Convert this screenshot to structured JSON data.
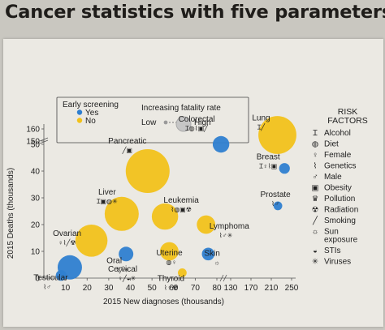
{
  "page_title": "Cancer statistics with five parameters",
  "chart_data": {
    "type": "scatter",
    "title": "Cancer statistics with five parameters",
    "xlabel": "2015 New diagnoses (thousands)",
    "ylabel": "2015 Deaths (thousands)",
    "x_ticks": [
      "10",
      "20",
      "30",
      "40",
      "50",
      "60",
      "70",
      "80",
      "130",
      "170",
      "210",
      "250"
    ],
    "y_ticks": [
      "0",
      "10",
      "20",
      "30",
      "40",
      "50",
      "150",
      "160"
    ],
    "legend": {
      "early_screening": {
        "title": "Early screening",
        "items": [
          {
            "label": "Yes",
            "color": "#2f7fd0"
          },
          {
            "label": "No",
            "color": "#f2c21b"
          }
        ]
      },
      "fatality": {
        "title": "Increasing fatality rate",
        "low": "Low",
        "high": "High"
      },
      "risk_factors": {
        "title": [
          "RISK",
          "FACTORS"
        ],
        "items": [
          {
            "label": "Alcohol",
            "icon": "glass-icon"
          },
          {
            "label": "Diet",
            "icon": "diet-icon"
          },
          {
            "label": "Female",
            "icon": "female-icon"
          },
          {
            "label": "Genetics",
            "icon": "dna-icon"
          },
          {
            "label": "Male",
            "icon": "male-icon"
          },
          {
            "label": "Obesity",
            "icon": "obesity-icon"
          },
          {
            "label": "Pollution",
            "icon": "factory-icon"
          },
          {
            "label": "Radiation",
            "icon": "radiation-icon"
          },
          {
            "label": "Smoking",
            "icon": "cigarette-icon"
          },
          {
            "label": "Sun exposure",
            "icon": "sun-icon"
          },
          {
            "label": "STIs",
            "icon": "sti-icon"
          },
          {
            "label": "Viruses",
            "icon": "virus-icon"
          }
        ]
      }
    },
    "points": [
      {
        "name": "Lung",
        "x": 222,
        "y": 155,
        "fatality": 0.85,
        "screening": "No",
        "factors": [
          "Alcohol",
          "Smoking"
        ]
      },
      {
        "name": "Pancreatic",
        "x": 48,
        "y": 40,
        "fatality": 1.0,
        "screening": "No",
        "factors": [
          "Smoking",
          "Obesity"
        ]
      },
      {
        "name": "Colorectal",
        "x": 95,
        "y": 50,
        "fatality": 0.3,
        "screening": "Yes",
        "factors": [
          "Alcohol",
          "Diet",
          "Genetics",
          "Obesity",
          "Smoking"
        ]
      },
      {
        "name": "Breast",
        "x": 236,
        "y": 41,
        "fatality": 0.15,
        "screening": "Yes",
        "factors": [
          "Alcohol",
          "Female",
          "Genetics",
          "Obesity"
        ]
      },
      {
        "name": "Prostate",
        "x": 223,
        "y": 27,
        "fatality": 0.1,
        "screening": "Yes",
        "factors": [
          "Genetics",
          "Male"
        ]
      },
      {
        "name": "Liver",
        "x": 36,
        "y": 24,
        "fatality": 0.75,
        "screening": "No",
        "factors": [
          "Alcohol",
          "Obesity",
          "Diet",
          "Viruses"
        ]
      },
      {
        "name": "Leukemia",
        "x": 56,
        "y": 23,
        "fatality": 0.55,
        "screening": "No",
        "factors": [
          "Genetics",
          "Diet",
          "Obesity",
          "Radiation"
        ]
      },
      {
        "name": "Lymphoma",
        "x": 75,
        "y": 20,
        "fatality": 0.35,
        "screening": "No",
        "factors": [
          "Genetics",
          "Male",
          "Viruses"
        ]
      },
      {
        "name": "Ovarian",
        "x": 22,
        "y": 14,
        "fatality": 0.7,
        "screening": "No",
        "factors": [
          "Female",
          "Genetics",
          "Smoking",
          "Radiation"
        ]
      },
      {
        "name": "Uterine",
        "x": 58,
        "y": 10,
        "fatality": 0.35,
        "screening": "No",
        "factors": [
          "Diet",
          "Female"
        ]
      },
      {
        "name": "Oral",
        "x": 38,
        "y": 9,
        "fatality": 0.25,
        "screening": "Yes",
        "factors": [
          "Genetics",
          "Smoking",
          "Viruses"
        ]
      },
      {
        "name": "Skin",
        "x": 76,
        "y": 9,
        "fatality": 0.2,
        "screening": "Yes",
        "factors": [
          "Sun exposure"
        ]
      },
      {
        "name": "Testicular",
        "x": 8,
        "y": 1,
        "fatality": 0.15,
        "screening": "Yes",
        "factors": [
          "Genetics",
          "Male"
        ]
      },
      {
        "name": "Cervical",
        "x": 12,
        "y": 4,
        "fatality": 0.5,
        "screening": "Yes",
        "factors": [
          "Female",
          "Smoking",
          "STIs",
          "Viruses"
        ]
      },
      {
        "name": "Thyroid",
        "x": 64,
        "y": 2,
        "fatality": 0.1,
        "screening": "No",
        "factors": [
          "Genetics",
          "Female",
          "Radiation"
        ]
      }
    ]
  }
}
